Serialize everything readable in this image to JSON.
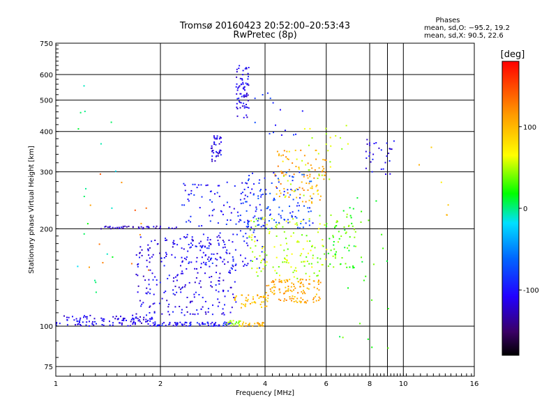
{
  "chart_data": {
    "type": "scatter",
    "title": "Tromsø 20160423 20:52:00–20:53:43",
    "subtitle": "RwPretec (8p)",
    "xlabel": "Frequency [MHz]",
    "ylabel": "Stationary phase Virtual Height [km]",
    "x_scale": "log",
    "y_scale": "log",
    "xlim": [
      1,
      16
    ],
    "ylim": [
      70,
      750
    ],
    "x_ticks": [
      1,
      2,
      4,
      6,
      8,
      10,
      16
    ],
    "y_ticks": [
      75,
      100,
      200,
      300,
      400,
      500,
      600,
      750
    ],
    "grid": true,
    "phases_box": {
      "heading": "Phases",
      "line_o": "mean, sd,O: −95.2, 19.2",
      "line_x": "mean, sd,X:  90.5, 22.6"
    },
    "colorbar": {
      "label": "[deg]",
      "range": [
        -180,
        180
      ],
      "ticks": [
        100,
        0,
        -100
      ],
      "colormap": "rainbow-black-to-red"
    },
    "clusters": [
      {
        "name": "",
        "phase": -110,
        "x": [
          1.0,
          1.9
        ],
        "y": [
          100,
          108
        ],
        "n": 110
      },
      {
        "name": "",
        "phase": -100,
        "x": [
          1.9,
          3.2
        ],
        "y": [
          100,
          103
        ],
        "n": 80
      },
      {
        "name": "",
        "phase": 40,
        "x": [
          3.1,
          3.4
        ],
        "y": [
          100,
          104
        ],
        "n": 20
      },
      {
        "name": "",
        "phase": 100,
        "x": [
          3.4,
          4.0
        ],
        "y": [
          100,
          103
        ],
        "n": 25
      },
      {
        "name": "",
        "phase": -120,
        "x": [
          1.35,
          2.3
        ],
        "y": [
          200,
          204
        ],
        "n": 40
      },
      {
        "name": "",
        "phase": -110,
        "x": [
          3.3,
          3.6
        ],
        "y": [
          440,
          640
        ],
        "n": 70
      },
      {
        "name": "",
        "phase": -110,
        "x": [
          2.8,
          3.0
        ],
        "y": [
          320,
          390
        ],
        "n": 40
      },
      {
        "name": "",
        "phase": -110,
        "x": [
          1.7,
          3.3
        ],
        "y": [
          108,
          190
        ],
        "n": 260
      },
      {
        "name": "",
        "phase": -100,
        "x": [
          2.3,
          4.0
        ],
        "y": [
          150,
          280
        ],
        "n": 170
      },
      {
        "name": "",
        "phase": 100,
        "x": [
          3.2,
          4.1
        ],
        "y": [
          113,
          125
        ],
        "n": 45
      },
      {
        "name": "",
        "phase": 110,
        "x": [
          4.0,
          5.8
        ],
        "y": [
          118,
          140
        ],
        "n": 120
      },
      {
        "name": "",
        "phase": 50,
        "x": [
          3.6,
          6.1
        ],
        "y": [
          140,
          220
        ],
        "n": 140
      },
      {
        "name": "",
        "phase": 110,
        "x": [
          4.2,
          6.0
        ],
        "y": [
          240,
          350
        ],
        "n": 90
      },
      {
        "name": "",
        "phase": -80,
        "x": [
          3.5,
          5.5
        ],
        "y": [
          200,
          300
        ],
        "n": 110
      },
      {
        "name": "",
        "phase": 30,
        "x": [
          6.0,
          7.3
        ],
        "y": [
          150,
          240
        ],
        "n": 60
      },
      {
        "name": "",
        "phase": -110,
        "x": [
          7.8,
          9.4
        ],
        "y": [
          290,
          380
        ],
        "n": 30
      },
      {
        "name": "",
        "phase": 60,
        "x": [
          4.5,
          7.0
        ],
        "y": [
          250,
          420
        ],
        "n": 40
      },
      {
        "name": "",
        "phase": 0,
        "x": [
          1.15,
          1.5
        ],
        "y": [
          120,
          620
        ],
        "n": 18
      },
      {
        "name": "",
        "phase": 130,
        "x": [
          1.2,
          1.9
        ],
        "y": [
          110,
          300
        ],
        "n": 12
      },
      {
        "name": "",
        "phase": -90,
        "x": [
          3.7,
          5.2
        ],
        "y": [
          380,
          530
        ],
        "n": 15
      },
      {
        "name": "",
        "phase": 20,
        "x": [
          6.5,
          9.2
        ],
        "y": [
          85,
          280
        ],
        "n": 25
      },
      {
        "name": "",
        "phase": 90,
        "x": [
          10.5,
          13.5
        ],
        "y": [
          150,
          420
        ],
        "n": 6
      }
    ]
  }
}
